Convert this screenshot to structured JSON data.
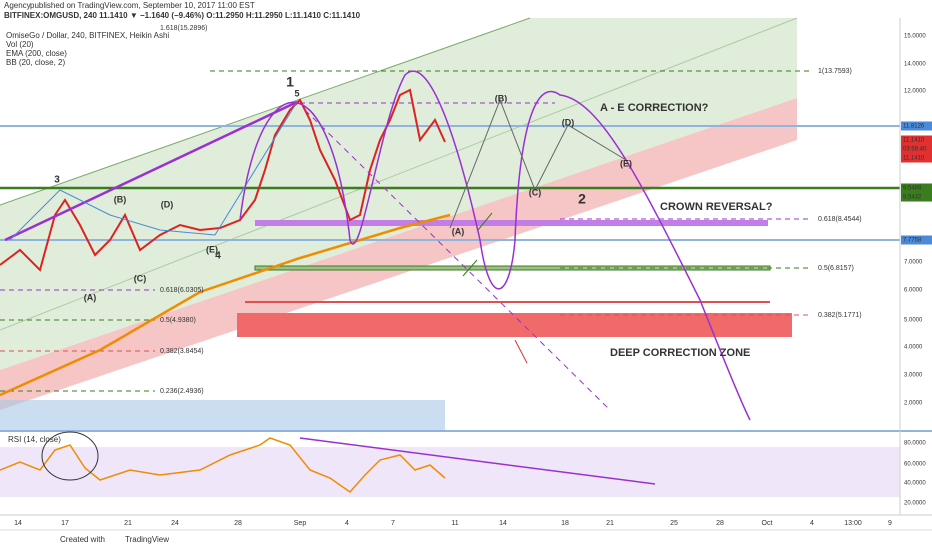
{
  "header": {
    "publisher": "Agency",
    "published": "published on TradingView.com, September 10, 2017 11:00 EST",
    "symbol": "BITFINEX:OMGUSD, 240  11.1410  ▼ −1.1640 (−9.46%)  O:11.2950  H:11.2950  L:11.1410  C:11.1410"
  },
  "legend": [
    "OmiseGo / Dollar, 240, BITFINEX, Heikin Ashi",
    "Vol (20)",
    "EMA (200, close)",
    "BB (20, close, 2)"
  ],
  "price_axis": [
    "15.0000",
    "14.0000",
    "12.0000",
    "7.0000",
    "6.0000",
    "5.0000",
    "4.0000",
    "3.0000",
    "2.0000"
  ],
  "price_badges": [
    "11.8126",
    "11.1410",
    "03:59:40",
    "11.1410",
    "9.5488",
    "9.5432",
    "7.7758"
  ],
  "time_axis": [
    "14",
    "17",
    "21",
    "24",
    "28",
    "Sep",
    "4",
    "7",
    "11",
    "14",
    "18",
    "21",
    "25",
    "28",
    "Oct",
    "4",
    "13:00",
    "9"
  ],
  "annotations": {
    "ae_correction": "A - E CORRECTION?",
    "crown_reversal": "CROWN REVERSAL?",
    "deep_correction": "DEEP CORRECTION ZONE"
  },
  "wave_labels": [
    "1",
    "2",
    "3",
    "4",
    "5",
    "(A)",
    "(B)",
    "(C)",
    "(D)",
    "(E)",
    "(A)",
    "(B)",
    "(C)",
    "(D)",
    "(E)"
  ],
  "fib_labels": [
    "1.618(15.2896)",
    "1(13.7593)",
    "0.618(8.4544)",
    "0.5(6.8157)",
    "0.382(5.1771)",
    "0.618(6.0305)",
    "0.5(4.9380)",
    "0.382(3.8454)",
    "0.236(2.4936)"
  ],
  "rsi": {
    "title": "RSI (14, close)",
    "axis": [
      "80.0000",
      "60.0000",
      "40.0000",
      "20.0000"
    ]
  },
  "footer": {
    "created": "Created with",
    "brand": "TradingView"
  }
}
